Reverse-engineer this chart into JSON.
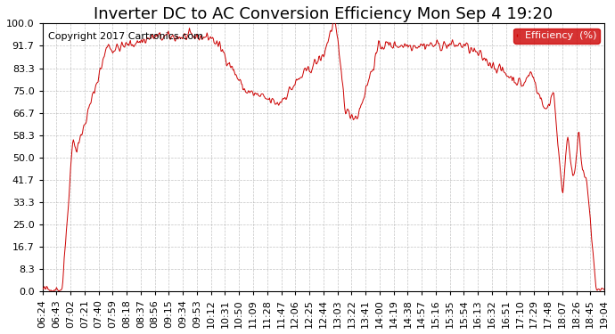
{
  "title": "Inverter DC to AC Conversion Efficiency Mon Sep 4 19:20",
  "copyright": "Copyright 2017 Cartronics.com",
  "legend_label": "Efficiency  (%)",
  "legend_bg": "#cc0000",
  "legend_text_color": "#ffffff",
  "line_color": "#cc0000",
  "background_color": "#ffffff",
  "grid_color": "#aaaaaa",
  "yticks": [
    0.0,
    8.3,
    16.7,
    25.0,
    33.3,
    41.7,
    50.0,
    58.3,
    66.7,
    75.0,
    83.3,
    91.7,
    100.0
  ],
  "ytick_labels": [
    "0.0",
    "8.3",
    "16.7",
    "25.0",
    "33.3",
    "41.7",
    "50.0",
    "58.3",
    "66.7",
    "75.0",
    "83.3",
    "91.7",
    "100.0"
  ],
  "xtick_labels": [
    "06:24",
    "06:43",
    "07:02",
    "07:21",
    "07:40",
    "07:59",
    "08:18",
    "08:37",
    "08:56",
    "09:15",
    "09:34",
    "09:53",
    "10:12",
    "10:31",
    "10:50",
    "11:09",
    "11:28",
    "11:47",
    "12:06",
    "12:25",
    "12:44",
    "13:03",
    "13:22",
    "13:41",
    "14:00",
    "14:19",
    "14:38",
    "14:57",
    "15:16",
    "15:35",
    "15:54",
    "16:13",
    "16:32",
    "16:51",
    "17:10",
    "17:29",
    "17:48",
    "18:07",
    "18:26",
    "18:45",
    "19:04"
  ],
  "title_fontsize": 13,
  "copyright_fontsize": 8,
  "axis_fontsize": 8,
  "ylim": [
    0.0,
    100.0
  ]
}
